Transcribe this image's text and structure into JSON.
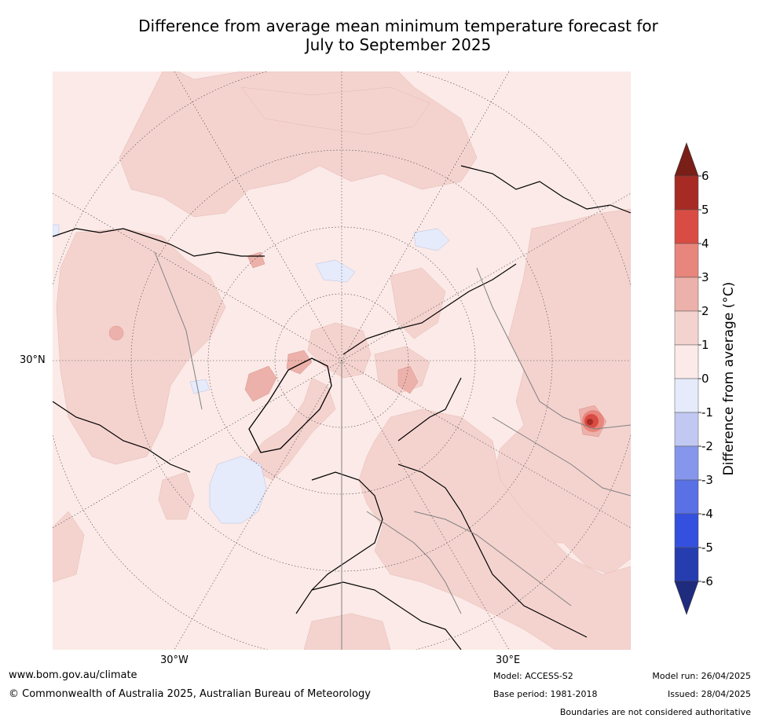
{
  "title_line1": "Difference from average mean minimum temperature forecast for",
  "title_line2": "July to September 2025",
  "map": {
    "projection": "north polar stereographic",
    "lat_label": "30°N",
    "lon_labels": [
      "30°W",
      "30°E"
    ],
    "background_color": "#fbeae7",
    "graticule": "dotted"
  },
  "colorbar": {
    "label": "Difference from average ($^\\circ$C)",
    "label_display": "Difference from average (°C)",
    "ticks": [
      "6",
      "5",
      "4",
      "3",
      "2",
      "1",
      "0",
      "-1",
      "-2",
      "-3",
      "-4",
      "-5",
      "-6"
    ],
    "colors": [
      "#7a1e18",
      "#a82a24",
      "#d94c43",
      "#e8857c",
      "#ecb1aa",
      "#f4d3cf",
      "#fbeae7",
      "#e6ebfb",
      "#c1c8f1",
      "#8596ec",
      "#5a70e5",
      "#3450de",
      "#263db0",
      "#1f2b7d"
    ],
    "extend": "both"
  },
  "footer": {
    "website": "www.bom.gov.au/climate",
    "copyright": "© Commonwealth of Australia 2025, Australian Bureau of Meteorology",
    "model": "Model: ACCESS-S2",
    "base_period": "Base period: 1981-2018",
    "model_run": "Model run: 26/04/2025",
    "issued": "Issued: 28/04/2025",
    "disclaimer": "Boundaries are not considered authoritative"
  }
}
